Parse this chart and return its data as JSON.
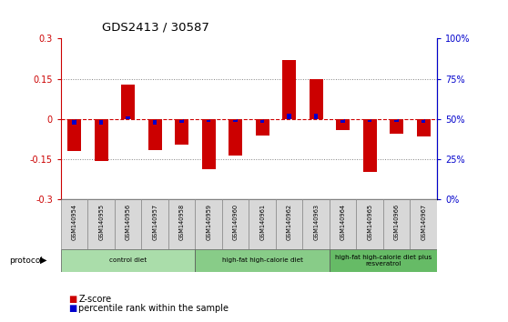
{
  "title": "GDS2413 / 30587",
  "samples": [
    "GSM140954",
    "GSM140955",
    "GSM140956",
    "GSM140957",
    "GSM140958",
    "GSM140959",
    "GSM140960",
    "GSM140961",
    "GSM140962",
    "GSM140963",
    "GSM140964",
    "GSM140965",
    "GSM140966",
    "GSM140967"
  ],
  "zscore": [
    -0.12,
    -0.155,
    0.13,
    -0.115,
    -0.095,
    -0.185,
    -0.135,
    -0.06,
    0.22,
    0.15,
    -0.04,
    -0.195,
    -0.055,
    -0.065
  ],
  "percentile": [
    -0.02,
    -0.02,
    0.01,
    -0.02,
    -0.015,
    -0.01,
    -0.01,
    -0.015,
    0.02,
    0.02,
    -0.015,
    -0.01,
    -0.01,
    -0.015
  ],
  "zscore_color": "#cc0000",
  "percentile_color": "#0000cc",
  "ylim": [
    -0.3,
    0.3
  ],
  "yticks": [
    -0.3,
    -0.15,
    0.0,
    0.15,
    0.3
  ],
  "ytick_labels_left": [
    "-0.3",
    "-0.15",
    "0",
    "0.15",
    "0.3"
  ],
  "ytick_labels_right": [
    "0%",
    "25%",
    "50%",
    "75%",
    "100%"
  ],
  "yticks_right": [
    0,
    25,
    50,
    75,
    100
  ],
  "hline_y": 0.0,
  "dotted_lines": [
    -0.15,
    0.15
  ],
  "groups": [
    {
      "label": "control diet",
      "start": 0,
      "end": 4,
      "color": "#aaddaa"
    },
    {
      "label": "high-fat high-calorie diet",
      "start": 5,
      "end": 9,
      "color": "#88cc88"
    },
    {
      "label": "high-fat high-calorie diet plus\nresveratrol",
      "start": 10,
      "end": 13,
      "color": "#66bb66"
    }
  ],
  "protocol_label": "protocol",
  "legend_zscore": "Z-score",
  "legend_percentile": "percentile rank within the sample",
  "bar_width": 0.5,
  "left_axis_color": "#cc0000",
  "right_axis_color": "#0000cc"
}
